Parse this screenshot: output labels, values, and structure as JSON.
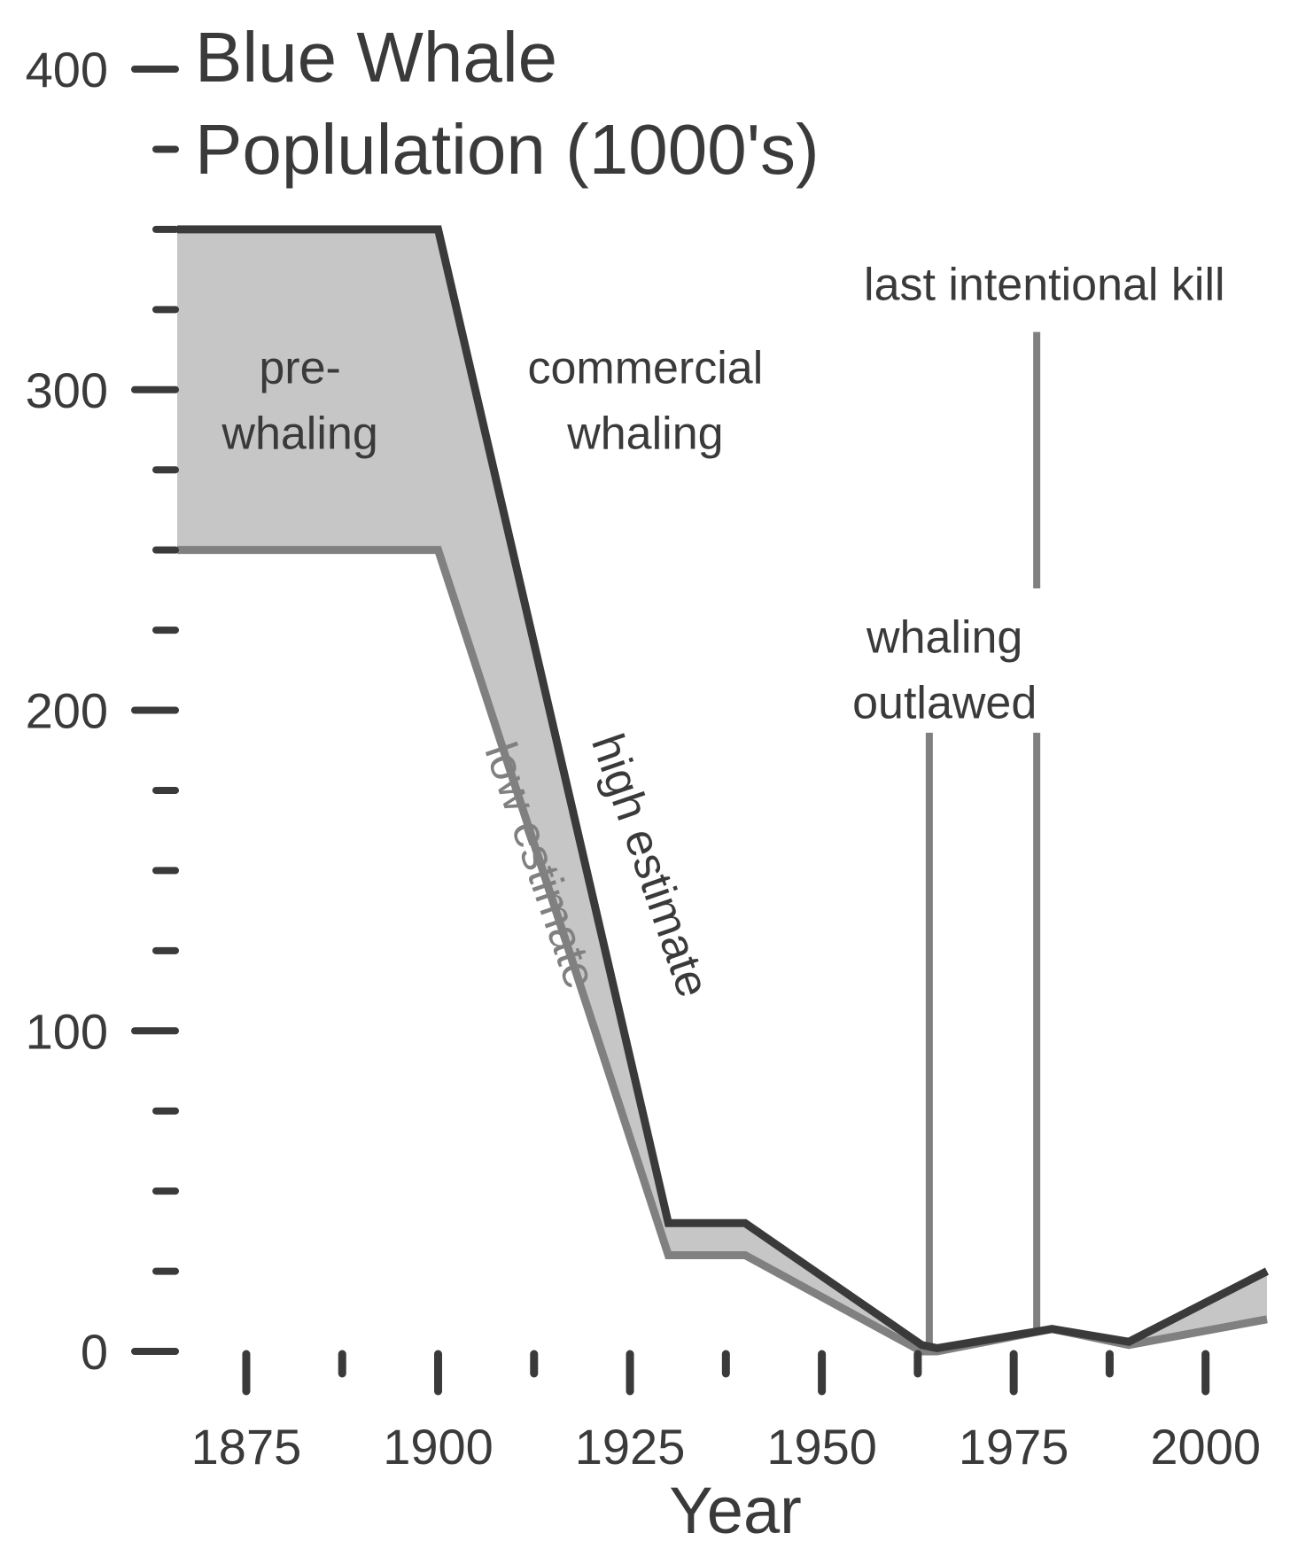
{
  "chart_data": {
    "type": "area",
    "title_lines": [
      "Blue Whale",
      "Poplulation (1000's)"
    ],
    "xlabel": "Year",
    "ylabel": "",
    "xlim": [
      1866,
      2008
    ],
    "ylim": [
      0,
      400
    ],
    "x_major_ticks": [
      1875,
      1900,
      1925,
      1950,
      1975,
      2000
    ],
    "x_minor_ticks": [
      1887.5,
      1912.5,
      1937.5,
      1962.5,
      1987.5
    ],
    "y_major_ticks": [
      0,
      100,
      200,
      300,
      400
    ],
    "y_minor_ticks": [
      25,
      50,
      75,
      125,
      150,
      175,
      225,
      250,
      275,
      325,
      350,
      375
    ],
    "grid": false,
    "legend": "none",
    "series": [
      {
        "name": "high estimate",
        "color": "#3a3a3a",
        "x": [
          1866,
          1900,
          1930,
          1940,
          1963,
          1965,
          1980,
          1990,
          2008
        ],
        "y": [
          350,
          350,
          40,
          40,
          2,
          1,
          7,
          3,
          25
        ]
      },
      {
        "name": "low estimate",
        "color": "#808080",
        "x": [
          1866,
          1900,
          1930,
          1940,
          1963,
          1965,
          1980,
          1990,
          2008
        ],
        "y": [
          250,
          250,
          30,
          30,
          0,
          0,
          7,
          2,
          10
        ]
      }
    ],
    "band_color": "#c6c6c6",
    "event_lines": [
      {
        "x": 1964,
        "y_top": 193,
        "color": "#808080"
      },
      {
        "x": 1978,
        "y_top": 193,
        "y_bottom": 7,
        "color": "#808080"
      },
      {
        "x": 1978,
        "y_top": 318,
        "y_bottom": 238,
        "color": "#808080"
      }
    ],
    "annotations": [
      {
        "lines": [
          "pre-",
          "whaling"
        ],
        "x": 1882,
        "y": 302
      },
      {
        "lines": [
          "commercial",
          "whaling"
        ],
        "x": 1927,
        "y": 302
      },
      {
        "lines": [
          "last intentional kill"
        ],
        "x": 1979,
        "y": 328
      },
      {
        "lines": [
          "whaling",
          "outlawed"
        ],
        "x": 1966,
        "y": 218
      }
    ]
  }
}
